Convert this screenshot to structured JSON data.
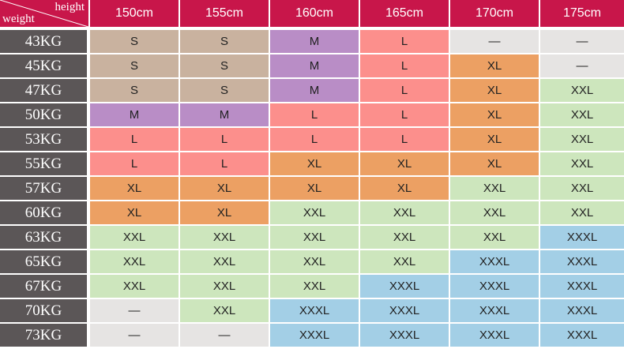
{
  "header": {
    "corner_top": "height",
    "corner_bottom": "weight",
    "heights": [
      "150cm",
      "155cm",
      "160cm",
      "165cm",
      "170cm",
      "175cm"
    ]
  },
  "rows": [
    {
      "weight": "43KG",
      "sizes": [
        "S",
        "S",
        "M",
        "L",
        "—",
        "—"
      ]
    },
    {
      "weight": "45KG",
      "sizes": [
        "S",
        "S",
        "M",
        "L",
        "XL",
        "—"
      ]
    },
    {
      "weight": "47KG",
      "sizes": [
        "S",
        "S",
        "M",
        "L",
        "XL",
        "XXL"
      ]
    },
    {
      "weight": "50KG",
      "sizes": [
        "M",
        "M",
        "L",
        "L",
        "XL",
        "XXL"
      ]
    },
    {
      "weight": "53KG",
      "sizes": [
        "L",
        "L",
        "L",
        "L",
        "XL",
        "XXL"
      ]
    },
    {
      "weight": "55KG",
      "sizes": [
        "L",
        "L",
        "XL",
        "XL",
        "XL",
        "XXL"
      ]
    },
    {
      "weight": "57KG",
      "sizes": [
        "XL",
        "XL",
        "XL",
        "XL",
        "XXL",
        "XXL"
      ]
    },
    {
      "weight": "60KG",
      "sizes": [
        "XL",
        "XL",
        "XXL",
        "XXL",
        "XXL",
        "XXL"
      ]
    },
    {
      "weight": "63KG",
      "sizes": [
        "XXL",
        "XXL",
        "XXL",
        "XXL",
        "XXL",
        "XXXL"
      ]
    },
    {
      "weight": "65KG",
      "sizes": [
        "XXL",
        "XXL",
        "XXL",
        "XXL",
        "XXXL",
        "XXXL"
      ]
    },
    {
      "weight": "67KG",
      "sizes": [
        "XXL",
        "XXL",
        "XXL",
        "XXXL",
        "XXXL",
        "XXXL"
      ]
    },
    {
      "weight": "70KG",
      "sizes": [
        "—",
        "XXL",
        "XXXL",
        "XXXL",
        "XXXL",
        "XXXL"
      ]
    },
    {
      "weight": "73KG",
      "sizes": [
        "—",
        "—",
        "XXXL",
        "XXXL",
        "XXXL",
        "XXXL"
      ]
    }
  ],
  "colors": {
    "header": "#c8164a",
    "weight_column": "#5b5657",
    "S": "#c9b29f",
    "M": "#b98dc6",
    "L": "#fc8f8c",
    "XL": "#eca063",
    "XXL": "#cde6bd",
    "XXXL": "#a3cfe6",
    "none": "#e6e4e3"
  }
}
